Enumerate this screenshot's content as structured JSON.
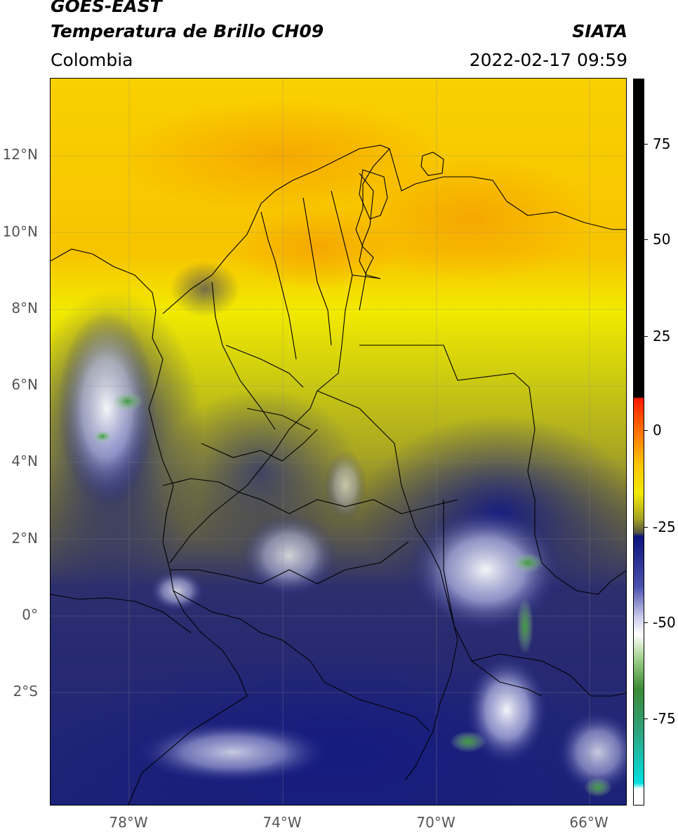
{
  "header": {
    "title_line1": "GOES-EAST",
    "title_line2": "Temperatura de Brillo CH09",
    "region": "Colombia",
    "source": "SIATA",
    "timestamp": "2022-02-17 09:59"
  },
  "map": {
    "lat_labels": [
      "12°N",
      "10°N",
      "8°N",
      "6°N",
      "4°N",
      "2°N",
      "0°",
      "2°S"
    ],
    "lon_labels": [
      "78°W",
      "74°W",
      "70°W",
      "66°W"
    ]
  },
  "colorbar": {
    "labels": [
      "75",
      "50",
      "25",
      "0",
      "-25",
      "-50",
      "-75"
    ]
  },
  "colors": {
    "warm_orange": "#f6a800",
    "yellow": "#f2ea00",
    "olive": "#a0a024",
    "navy": "#1a1f7e",
    "white": "#ffffff",
    "green": "#3f9a3f",
    "red": "#ff1a00",
    "cyan": "#00d4d4",
    "black": "#000000"
  }
}
